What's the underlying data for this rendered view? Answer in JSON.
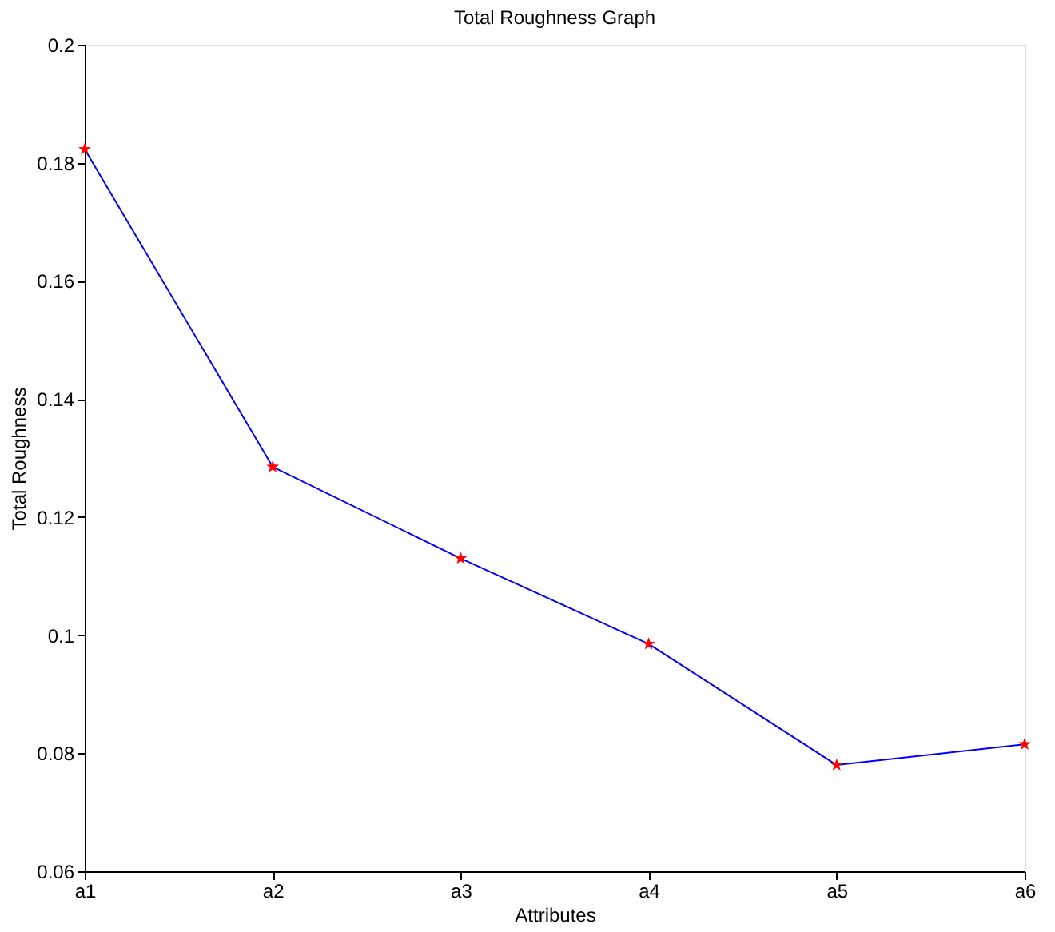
{
  "chart_data": {
    "type": "line",
    "title": "Total Roughness Graph",
    "xlabel": "Attributes",
    "ylabel": "Total Roughness",
    "categories": [
      "a1",
      "a2",
      "a3",
      "a4",
      "a5",
      "a6"
    ],
    "series": [
      {
        "color": "#0000ff",
        "colors": [
          "#ff0000",
          "#ff0000",
          "#ff0000",
          "#ff0000",
          "#ff0000",
          "#ff0000"
        ],
        "values": [
          0.1823,
          0.1285,
          0.113,
          0.0985,
          0.078,
          0.0815
        ]
      }
    ],
    "ylim": [
      0.06,
      0.2
    ],
    "yticks": [
      0.06,
      0.08,
      0.1,
      0.12,
      0.14,
      0.16,
      0.18,
      0.2
    ],
    "grid": false,
    "marker": "star",
    "line_style": "solid"
  }
}
